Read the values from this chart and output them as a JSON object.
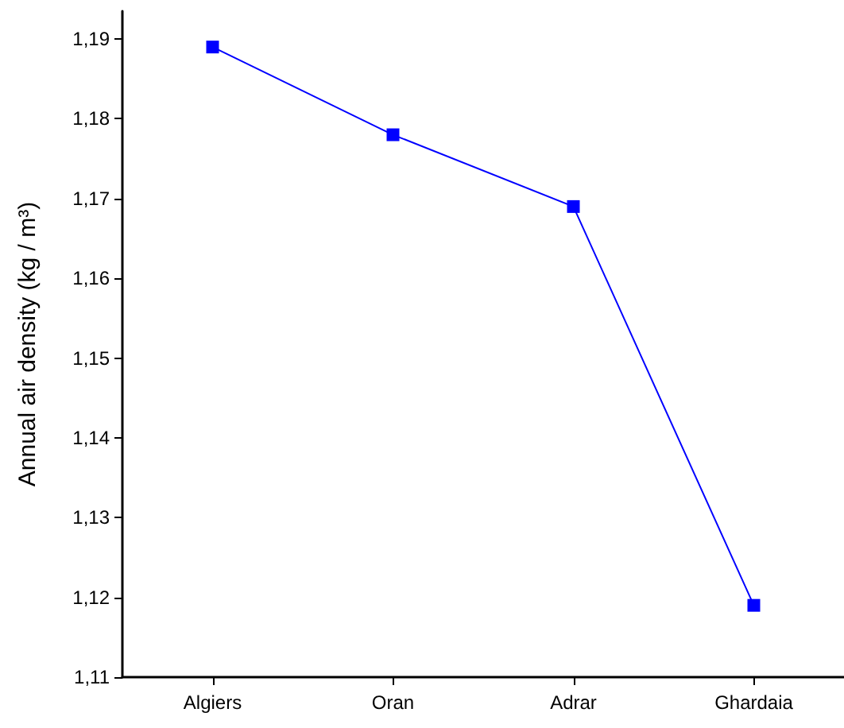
{
  "chart_data": {
    "type": "line",
    "ylabel": "Annual air density (kg / m³)",
    "categories": [
      "Algiers",
      "Oran",
      "Adrar",
      "Ghardaia"
    ],
    "series": [
      {
        "color": "#0000ff",
        "values": [
          1.189,
          1.178,
          1.169,
          1.119
        ]
      }
    ],
    "ylim": [
      1.11,
      1.1935
    ],
    "yticks": [
      {
        "value": 1.11,
        "label": "1,11"
      },
      {
        "value": 1.12,
        "label": "1,12"
      },
      {
        "value": 1.13,
        "label": "1,13"
      },
      {
        "value": 1.14,
        "label": "1,14"
      },
      {
        "value": 1.15,
        "label": "1,15"
      },
      {
        "value": 1.16,
        "label": "1,16"
      },
      {
        "value": 1.17,
        "label": "1,17"
      },
      {
        "value": 1.18,
        "label": "1,18"
      },
      {
        "value": 1.19,
        "label": "1,19"
      }
    ],
    "marker": "square",
    "line_style": "solid",
    "grid": false
  }
}
